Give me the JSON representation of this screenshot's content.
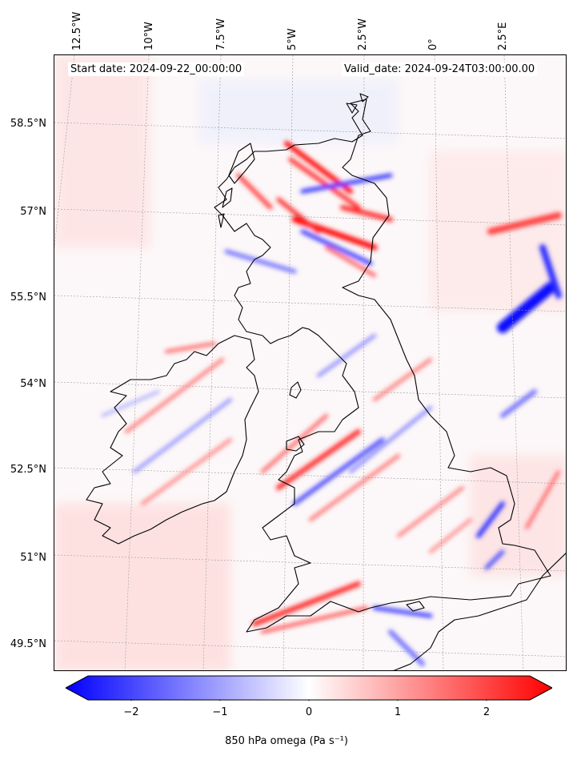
{
  "map": {
    "start_date": "Start date: 2024-09-22_00:00:00",
    "valid_date": "Valid_date: 2024-09-24T03:00:00.00",
    "lon_labels": [
      "12.5°W",
      "10°W",
      "7.5°W",
      "5°W",
      "2.5°W",
      "0°",
      "2.5°E"
    ],
    "lat_labels": [
      "58.5°N",
      "57°N",
      "55.5°N",
      "54°N",
      "52.5°N",
      "51°N",
      "49.5°N"
    ],
    "colorbar": {
      "ticks": [
        "−2",
        "−1",
        "0",
        "1",
        "2"
      ],
      "label": "850 hPa omega (Pa s⁻¹)",
      "min_color": "#0000ff",
      "mid_color": "#ffffff",
      "max_color": "#ff0000"
    }
  }
}
